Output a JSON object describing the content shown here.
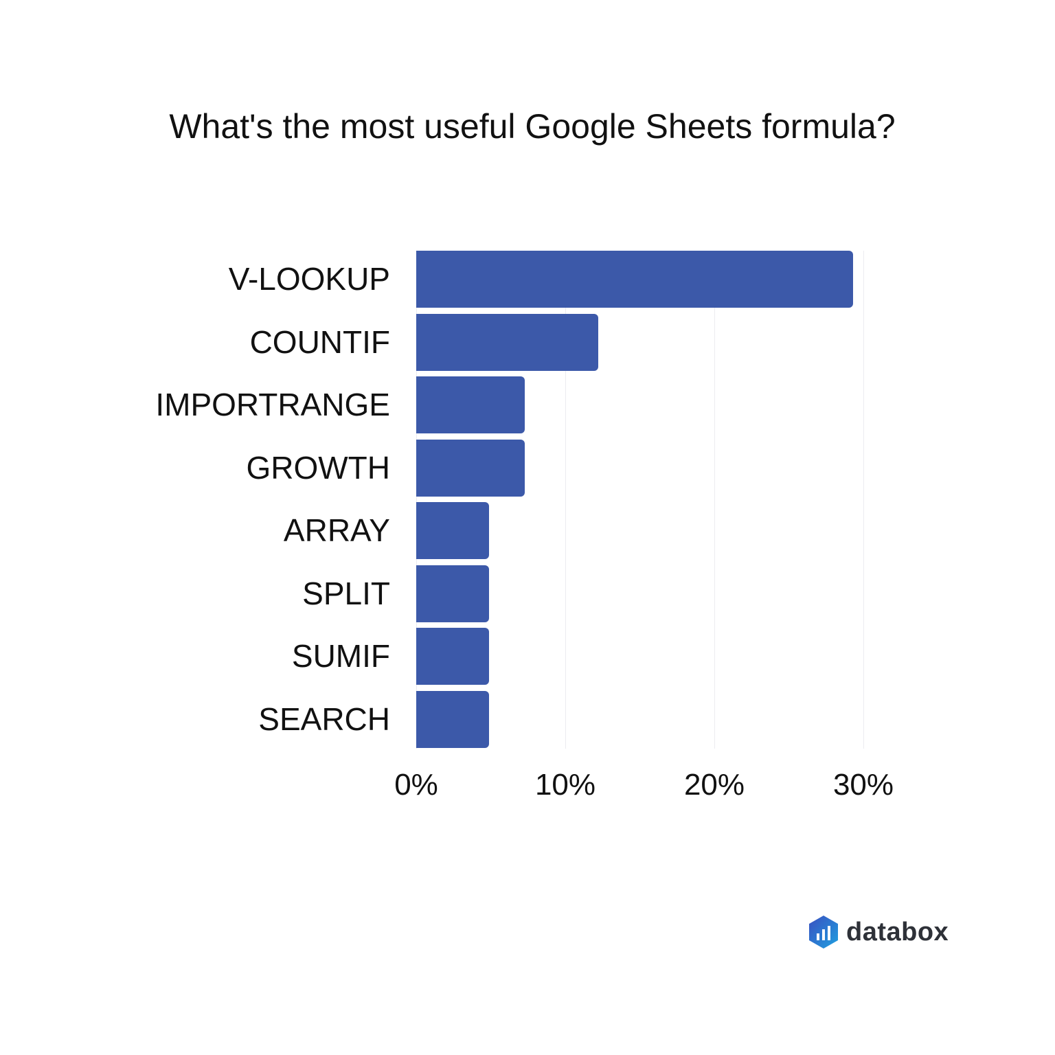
{
  "chart_data": {
    "type": "bar",
    "orientation": "horizontal",
    "title": "What's the most useful Google Sheets formula?",
    "categories": [
      "V-LOOKUP",
      "COUNTIF",
      "IMPORTRANGE",
      "GROWTH",
      "ARRAY",
      "SPLIT",
      "SUMIF",
      "SEARCH"
    ],
    "values": [
      29.3,
      12.2,
      7.3,
      7.3,
      4.9,
      4.9,
      4.9,
      4.9
    ],
    "unit": "%",
    "xlabel": "",
    "ylabel": "",
    "xlim": [
      0,
      30
    ],
    "x_ticks": [
      "0%",
      "10%",
      "20%",
      "30%"
    ],
    "grid": true,
    "bar_color": "#3c59a9"
  },
  "title": "What's the most useful Google Sheets formula?",
  "brand": {
    "name": "databox"
  }
}
